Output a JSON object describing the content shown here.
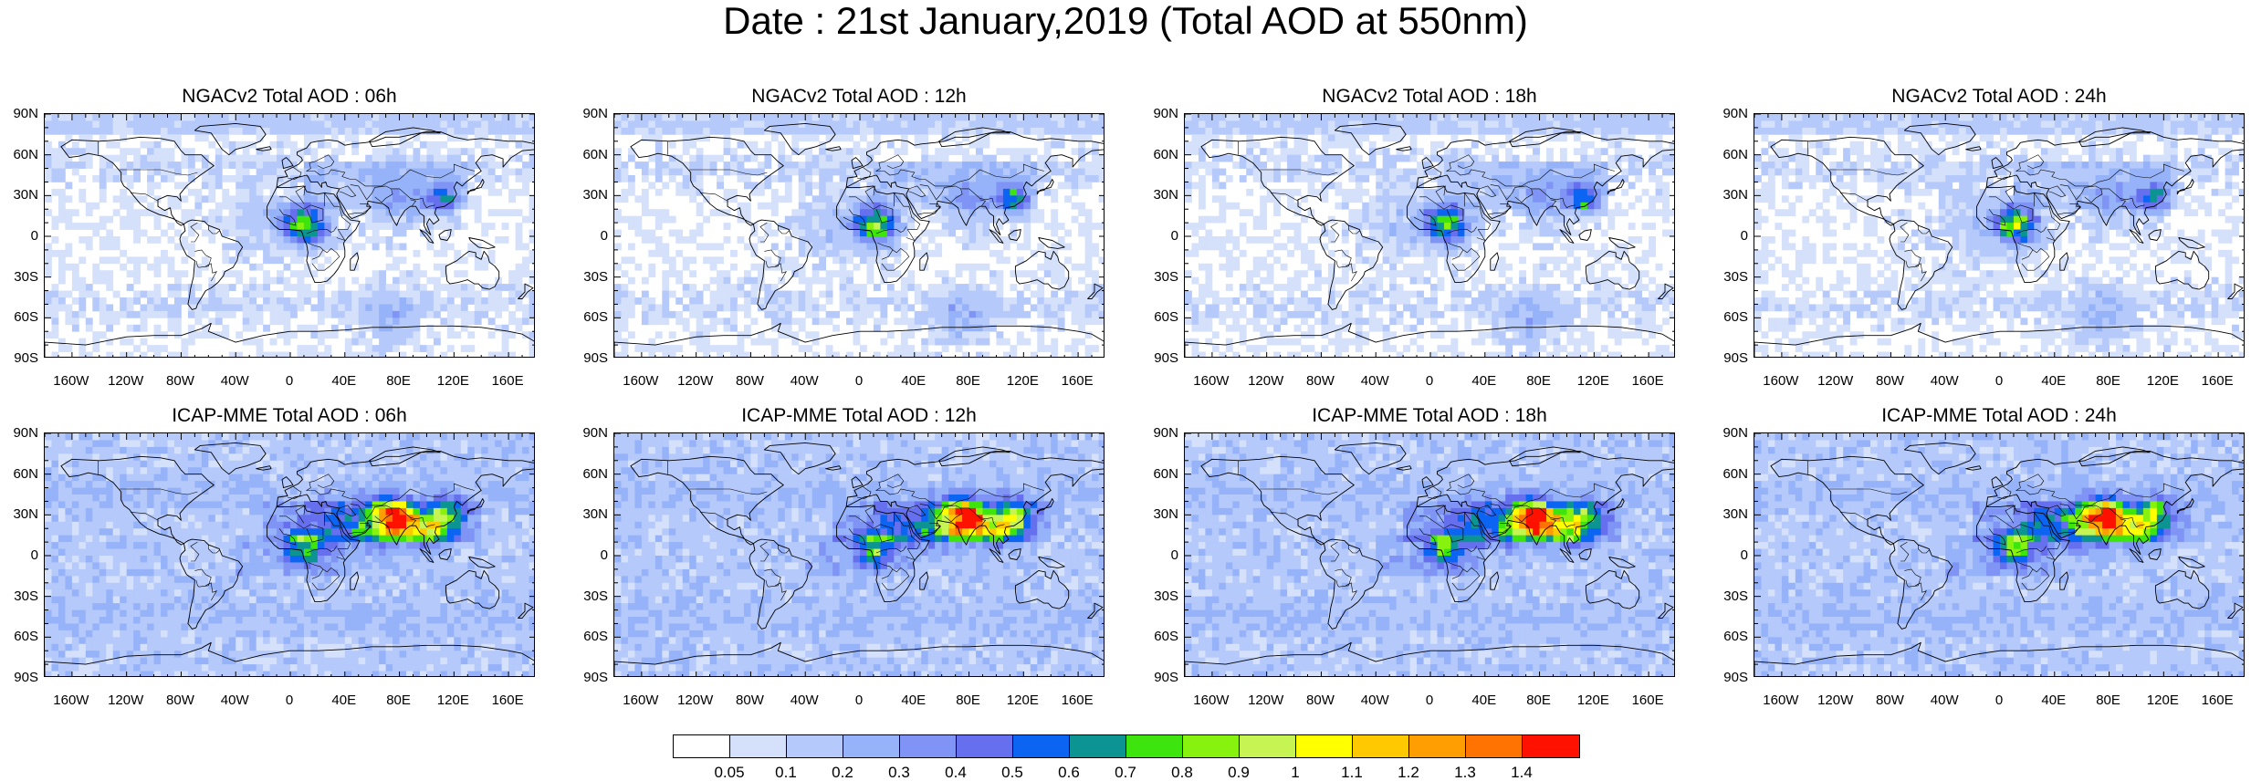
{
  "title": "Date : 21st January,2019 (Total AOD at 550nm)",
  "panels": [
    {
      "title": "NGACv2 Total AOD : 06h",
      "model": "ngac",
      "seed": 11
    },
    {
      "title": "NGACv2 Total AOD : 12h",
      "model": "ngac",
      "seed": 23
    },
    {
      "title": "NGACv2 Total AOD : 18h",
      "model": "ngac",
      "seed": 37
    },
    {
      "title": "NGACv2 Total AOD : 24h",
      "model": "ngac",
      "seed": 41
    },
    {
      "title": "ICAP-MME Total AOD : 06h",
      "model": "icap",
      "seed": 53
    },
    {
      "title": "ICAP-MME Total AOD : 12h",
      "model": "icap",
      "seed": 67
    },
    {
      "title": "ICAP-MME Total AOD : 18h",
      "model": "icap",
      "seed": 79
    },
    {
      "title": "ICAP-MME Total AOD : 24h",
      "model": "icap",
      "seed": 83
    }
  ],
  "lat_labels": [
    "90N",
    "60N",
    "30N",
    "0",
    "30S",
    "60S",
    "90S"
  ],
  "lon_labels": [
    "160W",
    "120W",
    "80W",
    "40W",
    "0",
    "40E",
    "80E",
    "120E",
    "160E"
  ],
  "lon_values": [
    -160,
    -120,
    -80,
    -40,
    0,
    40,
    80,
    120,
    160
  ],
  "colorbar": {
    "colors": [
      "#ffffff",
      "#d5e1fb",
      "#b5c9fb",
      "#96b3fa",
      "#7f94f4",
      "#6670ee",
      "#0c64f2",
      "#0c9492",
      "#3de40e",
      "#86f20e",
      "#c6f453",
      "#ffff00",
      "#ffc900",
      "#ff9e02",
      "#ff7302",
      "#ff1100"
    ],
    "labels": [
      "0.05",
      "0.1",
      "0.2",
      "0.3",
      "0.4",
      "0.5",
      "0.6",
      "0.7",
      "0.8",
      "0.9",
      "1",
      "1.1",
      "1.2",
      "1.3",
      "1.4"
    ]
  }
}
